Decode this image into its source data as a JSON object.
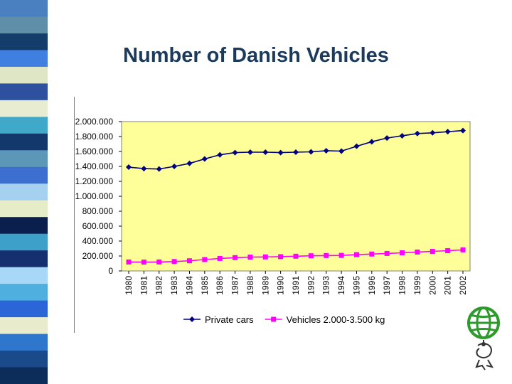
{
  "slide": {
    "title": "Number of Danish Vehicles",
    "stripe_colors": [
      "#4a7fc0",
      "#5f8fa8",
      "#153d6b",
      "#3f7fe0",
      "#dfe6c6",
      "#2f4f9f",
      "#e8ecd0",
      "#40a8c8",
      "#12386c",
      "#5d97b8",
      "#3c6fd0",
      "#a6d0f0",
      "#e6ecc8",
      "#0b1f4f",
      "#3da0c8",
      "#152f6f",
      "#a8d8f8",
      "#4fb0e0",
      "#2a66d8",
      "#e8eccc",
      "#2f77cc",
      "#1a4a8a",
      "#0c2c5a"
    ]
  },
  "chart_data": {
    "type": "line",
    "title": "",
    "xlabel": "",
    "ylabel": "",
    "x": [
      "1980",
      "1981",
      "1982",
      "1983",
      "1984",
      "1985",
      "1986",
      "1987",
      "1988",
      "1989",
      "1990",
      "1991",
      "1992",
      "1993",
      "1994",
      "1995",
      "1996",
      "1997",
      "1998",
      "1999",
      "2000",
      "2001",
      "2002"
    ],
    "y_ticks": [
      "0",
      "200.000",
      "400.000",
      "600.000",
      "800.000",
      "1.000.000",
      "1.200.000",
      "1.400.000",
      "1.600.000",
      "1.800.000",
      "2.000.000"
    ],
    "ylim": [
      0,
      2000000
    ],
    "grid": false,
    "plot_background": "#ffff99",
    "legend_position": "bottom",
    "series": [
      {
        "name": "Private cars",
        "color": "#000080",
        "marker": "diamond",
        "values": [
          1390000,
          1370000,
          1365000,
          1400000,
          1440000,
          1500000,
          1555000,
          1585000,
          1590000,
          1590000,
          1585000,
          1590000,
          1595000,
          1610000,
          1605000,
          1670000,
          1730000,
          1780000,
          1810000,
          1840000,
          1850000,
          1865000,
          1880000
        ]
      },
      {
        "name": "Vehicles 2.000-3.500 kg",
        "color": "#ff00ff",
        "marker": "square",
        "values": [
          120000,
          118000,
          120000,
          126000,
          136000,
          152000,
          167000,
          178000,
          185000,
          188000,
          191000,
          197000,
          203000,
          206000,
          208000,
          218000,
          226000,
          234000,
          243000,
          253000,
          262000,
          271000,
          282000
        ]
      }
    ]
  }
}
